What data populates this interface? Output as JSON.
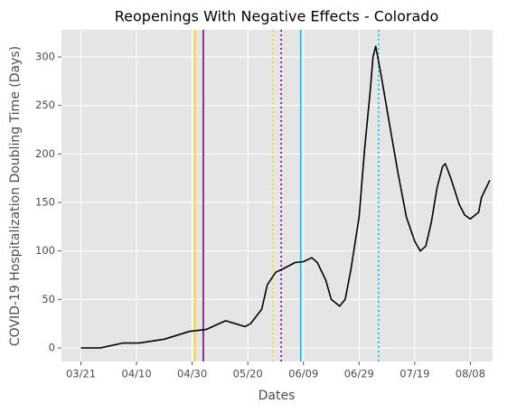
{
  "chart_data": {
    "type": "line",
    "title": "Reopenings With Negative Effects - Colorado",
    "x_label": "Dates",
    "y_label": "COVID-19 Hospitalization Doubling Time (Days)",
    "x": [
      "03/21",
      "03/28",
      "04/05",
      "04/11",
      "04/20",
      "04/29",
      "05/05",
      "05/12",
      "05/19",
      "05/21",
      "05/25",
      "05/27",
      "05/30",
      "06/02",
      "06/06",
      "06/09",
      "06/12",
      "06/14",
      "06/17",
      "06/19",
      "06/22",
      "06/24",
      "06/26",
      "06/29",
      "07/01",
      "07/03",
      "07/04",
      "07/05",
      "07/07",
      "07/10",
      "07/13",
      "07/16",
      "07/19",
      "07/21",
      "07/23",
      "07/25",
      "07/27",
      "07/29",
      "07/30",
      "08/01",
      "08/04",
      "08/06",
      "08/08",
      "08/11",
      "08/12",
      "08/15"
    ],
    "series": [
      {
        "color": "#000000",
        "values": [
          0,
          0,
          5,
          5,
          9,
          17,
          19,
          28,
          22,
          25,
          40,
          65,
          78,
          82,
          88,
          89,
          93,
          88,
          70,
          50,
          43,
          50,
          80,
          135,
          205,
          265,
          300,
          311,
          280,
          230,
          180,
          135,
          110,
          100,
          105,
          130,
          165,
          187,
          190,
          175,
          148,
          137,
          133,
          140,
          155,
          173
        ]
      }
    ],
    "xlim": [
      "03/14",
      "08/16"
    ],
    "xticks": [
      "03/21",
      "04/10",
      "04/30",
      "05/20",
      "06/09",
      "06/29",
      "07/19",
      "08/08"
    ],
    "ylim": [
      -14,
      328
    ],
    "yticks": [
      0,
      50,
      100,
      150,
      200,
      250,
      300
    ],
    "grid": true,
    "vlines": [
      {
        "x": "05/01",
        "color": "#ffd700",
        "style": "solid"
      },
      {
        "x": "05/04",
        "color": "#800080",
        "style": "solid"
      },
      {
        "x": "05/29",
        "color": "#ffd700",
        "style": "dotted"
      },
      {
        "x": "06/01",
        "color": "#800080",
        "style": "dotted"
      },
      {
        "x": "06/08",
        "color": "#00bfff",
        "style": "solid"
      },
      {
        "x": "07/06",
        "color": "#00bfff",
        "style": "dotted"
      }
    ]
  }
}
